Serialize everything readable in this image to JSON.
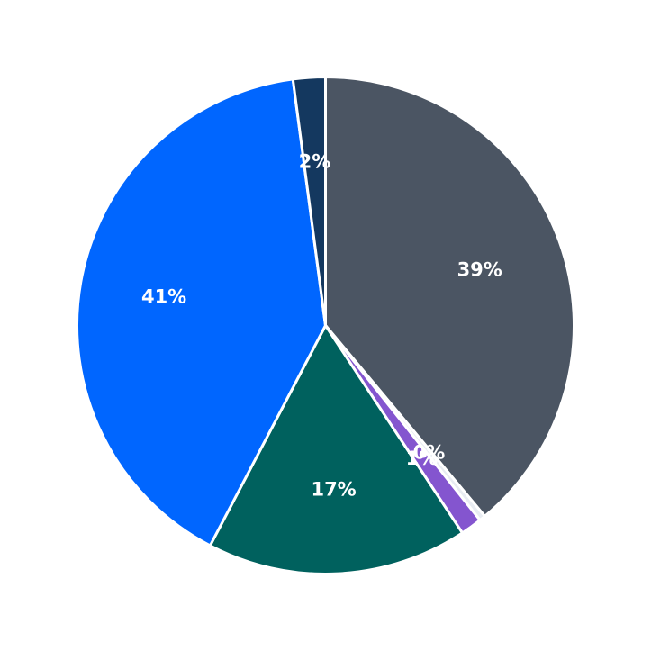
{
  "chart_data": {
    "type": "pie",
    "title": "",
    "start_angle_deg": 90,
    "direction": "clockwise",
    "slices": [
      {
        "label": "39%",
        "value": 39.0,
        "color": "#4b5563"
      },
      {
        "label": "0%",
        "value": 0.4,
        "color": "#e8ecf2"
      },
      {
        "label": "1%",
        "value": 1.4,
        "color": "#8455cf"
      },
      {
        "label": "17%",
        "value": 17.0,
        "color": "#00615e"
      },
      {
        "label": "41%",
        "value": 40.3,
        "color": "#0066ff"
      },
      {
        "label": "2%",
        "value": 2.1,
        "color": "#14385f"
      }
    ]
  }
}
